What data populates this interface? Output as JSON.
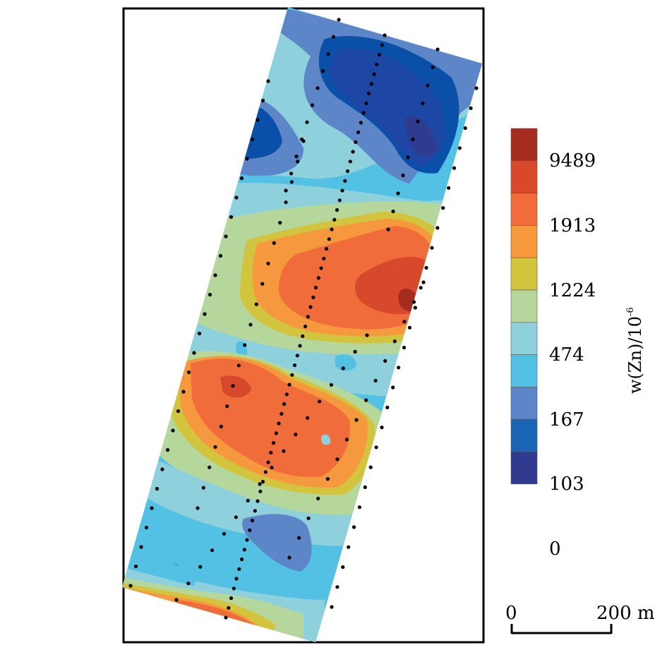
{
  "colors": [
    "#2e3b8e",
    "#1e47a5",
    "#0a50a8",
    "#1c64b5",
    "#5c86c8",
    "#52c1e4",
    "#8fd0dd",
    "#b5d79b",
    "#d3c43e",
    "#f6993e",
    "#f06c3b",
    "#d8482a",
    "#a52d20"
  ],
  "legend": {
    "tick_labels": [
      "9489",
      "1913",
      "1224",
      "474",
      "167",
      "103",
      "0"
    ],
    "unit_label": "w(Zn)/10",
    "unit_exponent": "-6"
  },
  "scale_bar": {
    "left_label": "0",
    "right_label": "200 m"
  },
  "survey_points": "black sample points along traverse lines"
}
